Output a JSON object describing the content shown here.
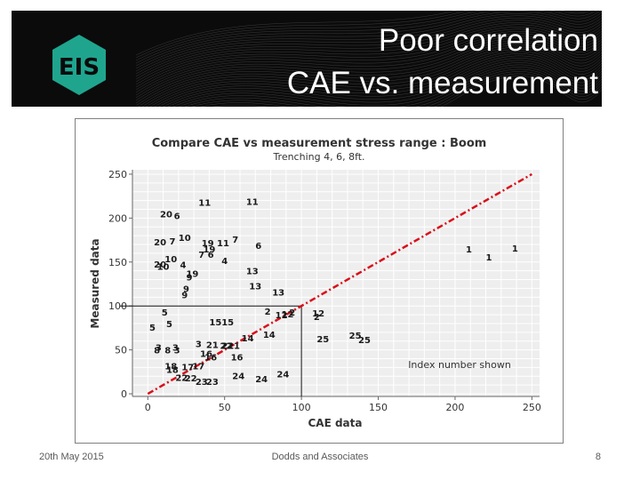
{
  "slide": {
    "title_line1": "Poor correlation",
    "title_line2": "CAE vs. measurement",
    "footer_date": "20th May 2015",
    "footer_center": "Dodds and Associates",
    "page_number": "8"
  },
  "colors": {
    "banner_bg": "#0b0b0b",
    "logo_green": "#1fa58e",
    "trend_line": "#d9101a",
    "point_label": "#1a1a1a"
  },
  "logo": {
    "text": "EIS"
  },
  "chart_data": {
    "type": "scatter",
    "title": "Compare CAE vs measurement stress range : Boom",
    "subtitle": "Trenching 4, 6, 8ft.",
    "xlabel": "CAE data",
    "ylabel": "Measured data",
    "xlim": [
      -10,
      255
    ],
    "ylim": [
      -3,
      255
    ],
    "xticks": [
      0,
      50,
      100,
      150,
      200,
      250
    ],
    "yticks": [
      0,
      50,
      100,
      150,
      200,
      250
    ],
    "grid": true,
    "annotation": "Index number shown",
    "reference_line": {
      "x": [
        0,
        250
      ],
      "y": [
        0,
        250
      ],
      "style": "dash-dot"
    },
    "reference_box": {
      "x": 100,
      "y": 100
    },
    "points": [
      {
        "label": "20",
        "x": 12,
        "y": 205
      },
      {
        "label": "6",
        "x": 19,
        "y": 203
      },
      {
        "label": "11",
        "x": 37,
        "y": 218
      },
      {
        "label": "11",
        "x": 68,
        "y": 219
      },
      {
        "label": "20",
        "x": 8,
        "y": 173
      },
      {
        "label": "7",
        "x": 16,
        "y": 174
      },
      {
        "label": "10",
        "x": 24,
        "y": 178
      },
      {
        "label": "7",
        "x": 57,
        "y": 176
      },
      {
        "label": "19",
        "x": 39,
        "y": 172
      },
      {
        "label": "11",
        "x": 49,
        "y": 172
      },
      {
        "label": "6",
        "x": 72,
        "y": 169
      },
      {
        "label": "19",
        "x": 40,
        "y": 165
      },
      {
        "label": "7",
        "x": 35,
        "y": 159
      },
      {
        "label": "6",
        "x": 41,
        "y": 159
      },
      {
        "label": "10",
        "x": 15,
        "y": 154
      },
      {
        "label": "4",
        "x": 50,
        "y": 152
      },
      {
        "label": "20",
        "x": 8,
        "y": 148
      },
      {
        "label": "10",
        "x": 10,
        "y": 145
      },
      {
        "label": "4",
        "x": 23,
        "y": 147
      },
      {
        "label": "19",
        "x": 29,
        "y": 137
      },
      {
        "label": "9",
        "x": 27,
        "y": 133
      },
      {
        "label": "13",
        "x": 68,
        "y": 140
      },
      {
        "label": "13",
        "x": 70,
        "y": 123
      },
      {
        "label": "9",
        "x": 25,
        "y": 120
      },
      {
        "label": "9",
        "x": 24,
        "y": 113
      },
      {
        "label": "13",
        "x": 85,
        "y": 116
      },
      {
        "label": "1",
        "x": 209,
        "y": 165
      },
      {
        "label": "1",
        "x": 239,
        "y": 166
      },
      {
        "label": "1",
        "x": 222,
        "y": 156
      },
      {
        "label": "2",
        "x": 78,
        "y": 94
      },
      {
        "label": "12",
        "x": 87,
        "y": 90
      },
      {
        "label": "12",
        "x": 91,
        "y": 91
      },
      {
        "label": "2",
        "x": 94,
        "y": 93
      },
      {
        "label": "12",
        "x": 111,
        "y": 92
      },
      {
        "label": "2",
        "x": 110,
        "y": 88
      },
      {
        "label": "5",
        "x": 11,
        "y": 93
      },
      {
        "label": "5",
        "x": 3,
        "y": 76
      },
      {
        "label": "5",
        "x": 14,
        "y": 80
      },
      {
        "label": "15",
        "x": 44,
        "y": 82
      },
      {
        "label": "15",
        "x": 52,
        "y": 82
      },
      {
        "label": "14",
        "x": 65,
        "y": 64
      },
      {
        "label": "14",
        "x": 79,
        "y": 68
      },
      {
        "label": "25",
        "x": 114,
        "y": 63
      },
      {
        "label": "25",
        "x": 135,
        "y": 67
      },
      {
        "label": "25",
        "x": 141,
        "y": 62
      },
      {
        "label": "8",
        "x": 6,
        "y": 50
      },
      {
        "label": "3",
        "x": 7,
        "y": 53
      },
      {
        "label": "8",
        "x": 13,
        "y": 50
      },
      {
        "label": "3",
        "x": 18,
        "y": 53
      },
      {
        "label": "3",
        "x": 19,
        "y": 50
      },
      {
        "label": "3",
        "x": 33,
        "y": 57
      },
      {
        "label": "21",
        "x": 42,
        "y": 56
      },
      {
        "label": "21",
        "x": 52,
        "y": 55
      },
      {
        "label": "21",
        "x": 56,
        "y": 55
      },
      {
        "label": "22",
        "x": 51,
        "y": 55
      },
      {
        "label": "16",
        "x": 38,
        "y": 46
      },
      {
        "label": "16",
        "x": 41,
        "y": 42
      },
      {
        "label": "16",
        "x": 58,
        "y": 42
      },
      {
        "label": "18",
        "x": 15,
        "y": 32
      },
      {
        "label": "18",
        "x": 16,
        "y": 28
      },
      {
        "label": "17",
        "x": 26,
        "y": 31
      },
      {
        "label": "17",
        "x": 33,
        "y": 32
      },
      {
        "label": "22",
        "x": 22,
        "y": 19
      },
      {
        "label": "22",
        "x": 28,
        "y": 18
      },
      {
        "label": "23",
        "x": 35,
        "y": 14
      },
      {
        "label": "23",
        "x": 42,
        "y": 14
      },
      {
        "label": "24",
        "x": 59,
        "y": 21
      },
      {
        "label": "24",
        "x": 74,
        "y": 17
      },
      {
        "label": "24",
        "x": 88,
        "y": 23
      }
    ]
  }
}
